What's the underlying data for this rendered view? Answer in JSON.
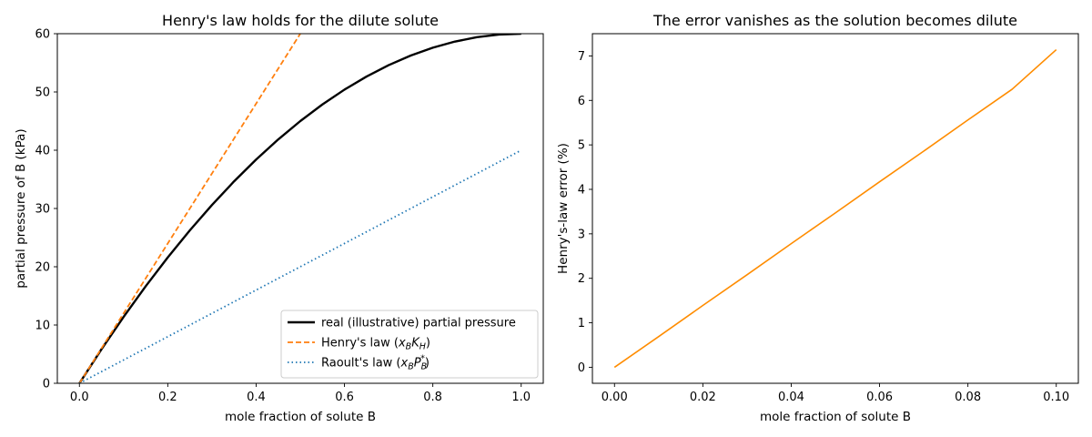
{
  "chart_data": [
    {
      "type": "line",
      "title": "Henry's law holds for the dilute solute",
      "xlabel": "mole fraction of solute B",
      "ylabel": "partial pressure of B (kPa)",
      "xlim": [
        -0.05,
        1.05
      ],
      "ylim": [
        0,
        60
      ],
      "xticks": [
        0.0,
        0.2,
        0.4,
        0.6,
        0.8,
        1.0
      ],
      "xtick_labels": [
        "0.0",
        "0.2",
        "0.4",
        "0.6",
        "0.8",
        "1.0"
      ],
      "yticks": [
        0,
        10,
        20,
        30,
        40,
        50,
        60
      ],
      "ytick_labels": [
        "0",
        "10",
        "20",
        "30",
        "40",
        "50",
        "60"
      ],
      "grid": false,
      "legend_position": "lower-right",
      "series": [
        {
          "name": "real (illustrative) partial pressure",
          "color": "#000000",
          "style": "solid",
          "x": [
            0.0,
            0.05,
            0.1,
            0.15,
            0.2,
            0.25,
            0.3,
            0.35,
            0.4,
            0.45,
            0.5,
            0.55,
            0.6,
            0.65,
            0.7,
            0.75,
            0.8,
            0.85,
            0.9,
            0.95,
            1.0
          ],
          "y": [
            0.0,
            5.85,
            11.4,
            16.65,
            21.6,
            26.25,
            30.6,
            34.65,
            38.4,
            41.85,
            45.0,
            47.85,
            50.4,
            52.65,
            54.6,
            56.25,
            57.6,
            58.65,
            59.4,
            59.85,
            60.0
          ]
        },
        {
          "name_prefix": "Henry's law (",
          "name_math": "x_B K_H",
          "name_suffix": ")",
          "color": "#ff7f0e",
          "style": "dashed",
          "x": [
            0.0,
            0.5
          ],
          "y": [
            0.0,
            60.0
          ]
        },
        {
          "name_prefix": "Raoult's law (",
          "name_math": "x_B P_B^*",
          "name_suffix": ")",
          "color": "#1f77b4",
          "style": "dotted",
          "x": [
            0.0,
            1.0
          ],
          "y": [
            0.0,
            40.0
          ]
        }
      ]
    },
    {
      "type": "line",
      "title": "The error vanishes as the solution becomes dilute",
      "xlabel": "mole fraction of solute B",
      "ylabel": "Henry's-law error (%)",
      "xlim": [
        -0.005,
        0.105
      ],
      "ylim": [
        -0.36,
        7.5
      ],
      "xticks": [
        0.0,
        0.02,
        0.04,
        0.06,
        0.08,
        0.1
      ],
      "xtick_labels": [
        "0.00",
        "0.02",
        "0.04",
        "0.06",
        "0.08",
        "0.10"
      ],
      "yticks": [
        0,
        1,
        2,
        3,
        4,
        5,
        6,
        7
      ],
      "ytick_labels": [
        "0",
        "1",
        "2",
        "3",
        "4",
        "5",
        "6",
        "7"
      ],
      "grid": false,
      "series": [
        {
          "color": "#ff8c00",
          "style": "solid",
          "x": [
            0.0,
            0.01,
            0.02,
            0.03,
            0.04,
            0.05,
            0.06,
            0.07,
            0.08,
            0.09,
            0.1
          ],
          "y": [
            0.0,
            0.69,
            1.39,
            2.08,
            2.78,
            3.47,
            4.17,
            4.86,
            5.56,
            6.25,
            7.14
          ]
        }
      ]
    }
  ]
}
